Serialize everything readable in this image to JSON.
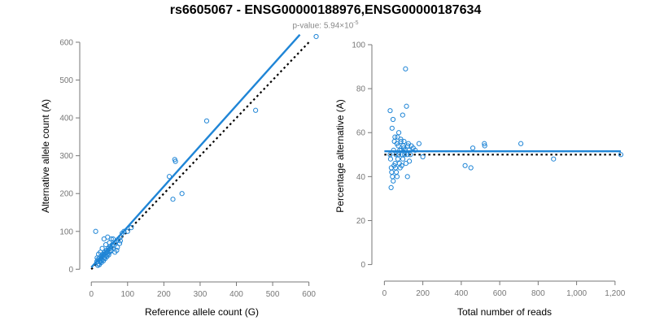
{
  "header": {
    "title": "rs6605067 - ENSG00000188976,ENSG00000187634",
    "subtitle_prefix": "p-value: 5.94×10",
    "subtitle_exponent": "-5"
  },
  "colors": {
    "points": "#1f85d6",
    "fit": "#1f85d6",
    "reference": "#000000",
    "axis": "#777777"
  },
  "chart_data": [
    {
      "type": "scatter",
      "xlabel": "Reference allele count (G)",
      "ylabel": "Alternative allele count (A)",
      "xlim": [
        -5,
        630
      ],
      "ylim": [
        -10,
        630
      ],
      "xticks": [
        0,
        100,
        200,
        300,
        400,
        500,
        600
      ],
      "yticks": [
        0,
        100,
        200,
        300,
        400,
        500,
        600
      ],
      "xtick_labels": [
        "0",
        "100",
        "200",
        "300",
        "400",
        "500",
        "600"
      ],
      "ytick_labels": [
        "0",
        "100",
        "200",
        "300",
        "400",
        "500",
        "600"
      ],
      "points": [
        [
          12,
          100
        ],
        [
          15,
          20
        ],
        [
          18,
          25
        ],
        [
          20,
          15
        ],
        [
          22,
          30
        ],
        [
          25,
          20
        ],
        [
          27,
          35
        ],
        [
          30,
          25
        ],
        [
          32,
          40
        ],
        [
          35,
          30
        ],
        [
          38,
          45
        ],
        [
          40,
          35
        ],
        [
          42,
          50
        ],
        [
          45,
          40
        ],
        [
          47,
          55
        ],
        [
          50,
          45
        ],
        [
          52,
          60
        ],
        [
          55,
          50
        ],
        [
          58,
          65
        ],
        [
          60,
          55
        ],
        [
          65,
          70
        ],
        [
          70,
          75
        ],
        [
          75,
          80
        ],
        [
          80,
          85
        ],
        [
          35,
          80
        ],
        [
          45,
          85
        ],
        [
          55,
          80
        ],
        [
          20,
          40
        ],
        [
          25,
          45
        ],
        [
          30,
          55
        ],
        [
          40,
          65
        ],
        [
          50,
          70
        ],
        [
          60,
          80
        ],
        [
          65,
          45
        ],
        [
          70,
          50
        ],
        [
          80,
          75
        ],
        [
          85,
          95
        ],
        [
          90,
          100
        ],
        [
          100,
          100
        ],
        [
          18,
          10
        ],
        [
          22,
          12
        ],
        [
          28,
          18
        ],
        [
          33,
          22
        ],
        [
          38,
          28
        ],
        [
          43,
          33
        ],
        [
          48,
          38
        ],
        [
          16,
          30
        ],
        [
          24,
          22
        ],
        [
          36,
          38
        ],
        [
          44,
          46
        ],
        [
          54,
          48
        ],
        [
          62,
          62
        ],
        [
          72,
          58
        ],
        [
          78,
          68
        ],
        [
          110,
          110
        ],
        [
          215,
          245
        ],
        [
          225,
          185
        ],
        [
          230,
          290
        ],
        [
          232,
          285
        ],
        [
          250,
          200
        ],
        [
          318,
          392
        ],
        [
          453,
          420
        ],
        [
          620,
          615
        ]
      ],
      "fit_line": [
        [
          0,
          5
        ],
        [
          575,
          620
        ]
      ],
      "reference_line": [
        [
          0,
          0
        ],
        [
          600,
          600
        ]
      ]
    },
    {
      "type": "scatter",
      "xlabel": "Total number of reads",
      "ylabel": "Percentage alternative (A)",
      "xlim": [
        -10,
        1260
      ],
      "ylim": [
        -2,
        100
      ],
      "xticks": [
        0,
        200,
        400,
        600,
        800,
        1000,
        1200
      ],
      "yticks": [
        0,
        20,
        40,
        60,
        80,
        100
      ],
      "xtick_labels": [
        "0",
        "200",
        "400",
        "600",
        "800",
        "1,000",
        "1,200"
      ],
      "ytick_labels": [
        "0",
        "20",
        "40",
        "60",
        "80",
        "100"
      ],
      "points": [
        [
          30,
          70
        ],
        [
          35,
          35
        ],
        [
          40,
          62
        ],
        [
          45,
          66
        ],
        [
          50,
          45
        ],
        [
          55,
          58
        ],
        [
          60,
          50
        ],
        [
          65,
          55
        ],
        [
          70,
          48
        ],
        [
          75,
          60
        ],
        [
          80,
          52
        ],
        [
          85,
          57
        ],
        [
          90,
          45
        ],
        [
          95,
          68
        ],
        [
          100,
          53
        ],
        [
          105,
          50
        ],
        [
          110,
          89
        ],
        [
          115,
          72
        ],
        [
          120,
          40
        ],
        [
          125,
          55
        ],
        [
          130,
          47
        ],
        [
          140,
          54
        ],
        [
          150,
          53
        ],
        [
          160,
          52
        ],
        [
          180,
          55
        ],
        [
          200,
          49
        ],
        [
          30,
          50
        ],
        [
          32,
          48
        ],
        [
          36,
          44
        ],
        [
          38,
          42
        ],
        [
          42,
          40
        ],
        [
          46,
          38
        ],
        [
          48,
          52
        ],
        [
          52,
          56
        ],
        [
          56,
          46
        ],
        [
          58,
          44
        ],
        [
          62,
          42
        ],
        [
          66,
          40
        ],
        [
          68,
          58
        ],
        [
          72,
          54
        ],
        [
          74,
          50
        ],
        [
          78,
          46
        ],
        [
          82,
          44
        ],
        [
          86,
          56
        ],
        [
          88,
          52
        ],
        [
          92,
          50
        ],
        [
          96,
          48
        ],
        [
          98,
          54
        ],
        [
          102,
          56
        ],
        [
          108,
          52
        ],
        [
          112,
          46
        ],
        [
          118,
          50
        ],
        [
          122,
          54
        ],
        [
          128,
          52
        ],
        [
          135,
          50
        ],
        [
          420,
          45
        ],
        [
          450,
          44
        ],
        [
          460,
          53
        ],
        [
          520,
          55
        ],
        [
          522,
          54
        ],
        [
          710,
          55
        ],
        [
          880,
          48
        ],
        [
          1230,
          50
        ]
      ],
      "fit_line": [
        [
          0,
          51.5
        ],
        [
          1230,
          51.5
        ]
      ],
      "reference_line": [
        [
          0,
          50
        ],
        [
          1230,
          50
        ]
      ]
    }
  ]
}
